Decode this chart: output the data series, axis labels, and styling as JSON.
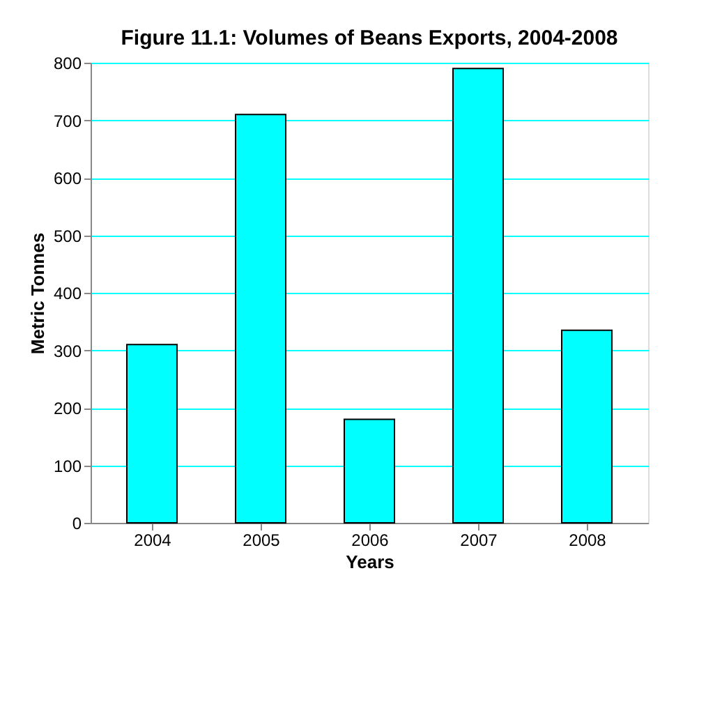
{
  "chart_data": {
    "type": "bar",
    "title": "Figure 11.1: Volumes of Beans Exports, 2004-2008",
    "xlabel": "Years",
    "ylabel": "Metric Tonnes",
    "categories": [
      "2004",
      "2005",
      "2006",
      "2007",
      "2008"
    ],
    "values": [
      310,
      710,
      180,
      790,
      335
    ],
    "color": "#00ffff",
    "ylim": [
      0,
      800
    ],
    "yticks": [
      0,
      100,
      200,
      300,
      400,
      500,
      600,
      700,
      800
    ],
    "grid": "y"
  }
}
